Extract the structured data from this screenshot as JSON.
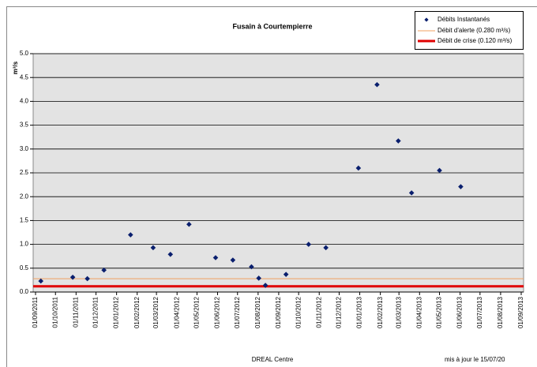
{
  "chart_data": {
    "type": "scatter",
    "title": "Fusain à Courtempierre",
    "ylabel": "m³/s",
    "footer_left": "DREAL Centre",
    "footer_right": "mis à jour le 15/07/20",
    "series": [
      {
        "name": "Débits Instantanés",
        "color": "#0a1f6e",
        "x": [
          "2011-09-09",
          "2011-10-27",
          "2011-11-18",
          "2011-12-13",
          "2012-01-22",
          "2012-02-25",
          "2012-03-22",
          "2012-04-19",
          "2012-05-29",
          "2012-06-24",
          "2012-07-22",
          "2012-08-02",
          "2012-08-12",
          "2012-09-12",
          "2012-10-16",
          "2012-11-11",
          "2012-12-30",
          "2013-01-27",
          "2013-02-28",
          "2013-03-20",
          "2013-05-01",
          "2013-06-02"
        ],
        "values": [
          0.23,
          0.31,
          0.28,
          0.46,
          1.2,
          0.93,
          0.79,
          1.42,
          0.72,
          0.67,
          0.53,
          0.29,
          0.14,
          0.37,
          1.0,
          0.93,
          2.6,
          4.35,
          3.17,
          2.08,
          2.55,
          2.21
        ]
      }
    ],
    "lines": [
      {
        "name": "Débit d'alerte (0.280 m³/s)",
        "value": 0.28,
        "color": "#f0a060"
      },
      {
        "name": "Débit de crise (0.120 m³/s)",
        "value": 0.12,
        "color": "#e00000"
      }
    ],
    "xlim": [
      "2011-09-01",
      "2013-09-01"
    ],
    "xticks": [
      {
        "value": "2011-09-01",
        "label": "01/09/2011"
      },
      {
        "value": "2011-10-01",
        "label": "01/10/2011"
      },
      {
        "value": "2011-11-01",
        "label": "01/11/2011"
      },
      {
        "value": "2011-12-01",
        "label": "01/12/2011"
      },
      {
        "value": "2012-01-01",
        "label": "01/01/2012"
      },
      {
        "value": "2012-02-01",
        "label": "01/02/2012"
      },
      {
        "value": "2012-03-01",
        "label": "01/03/2012"
      },
      {
        "value": "2012-04-01",
        "label": "01/04/2012"
      },
      {
        "value": "2012-05-01",
        "label": "01/05/2012"
      },
      {
        "value": "2012-06-01",
        "label": "01/06/2012"
      },
      {
        "value": "2012-07-01",
        "label": "01/07/2012"
      },
      {
        "value": "2012-08-01",
        "label": "01/08/2012"
      },
      {
        "value": "2012-09-01",
        "label": "01/09/2012"
      },
      {
        "value": "2012-10-01",
        "label": "01/10/2012"
      },
      {
        "value": "2012-11-01",
        "label": "01/11/2012"
      },
      {
        "value": "2012-12-01",
        "label": "01/12/2012"
      },
      {
        "value": "2013-01-01",
        "label": "01/01/2013"
      },
      {
        "value": "2013-02-01",
        "label": "01/02/2013"
      },
      {
        "value": "2013-03-01",
        "label": "01/03/2013"
      },
      {
        "value": "2013-04-01",
        "label": "01/04/2013"
      },
      {
        "value": "2013-05-01",
        "label": "01/05/2013"
      },
      {
        "value": "2013-06-01",
        "label": "01/06/2013"
      },
      {
        "value": "2013-07-01",
        "label": "01/07/2013"
      },
      {
        "value": "2013-08-01",
        "label": "01/08/2013"
      },
      {
        "value": "2013-09-01",
        "label": "01/09/2013"
      }
    ],
    "ylim": [
      0,
      5
    ],
    "yticks": [
      {
        "value": 0,
        "label": "0.0"
      },
      {
        "value": 0.5,
        "label": "0.5"
      },
      {
        "value": 1,
        "label": "1.0"
      },
      {
        "value": 1.5,
        "label": "1.5"
      },
      {
        "value": 2,
        "label": "2.0"
      },
      {
        "value": 2.5,
        "label": "2.5"
      },
      {
        "value": 3,
        "label": "3.0"
      },
      {
        "value": 3.5,
        "label": "3.5"
      },
      {
        "value": 4,
        "label": "4.0"
      },
      {
        "value": 4.5,
        "label": "4.5"
      },
      {
        "value": 5,
        "label": "5.0"
      }
    ],
    "grid": true
  }
}
